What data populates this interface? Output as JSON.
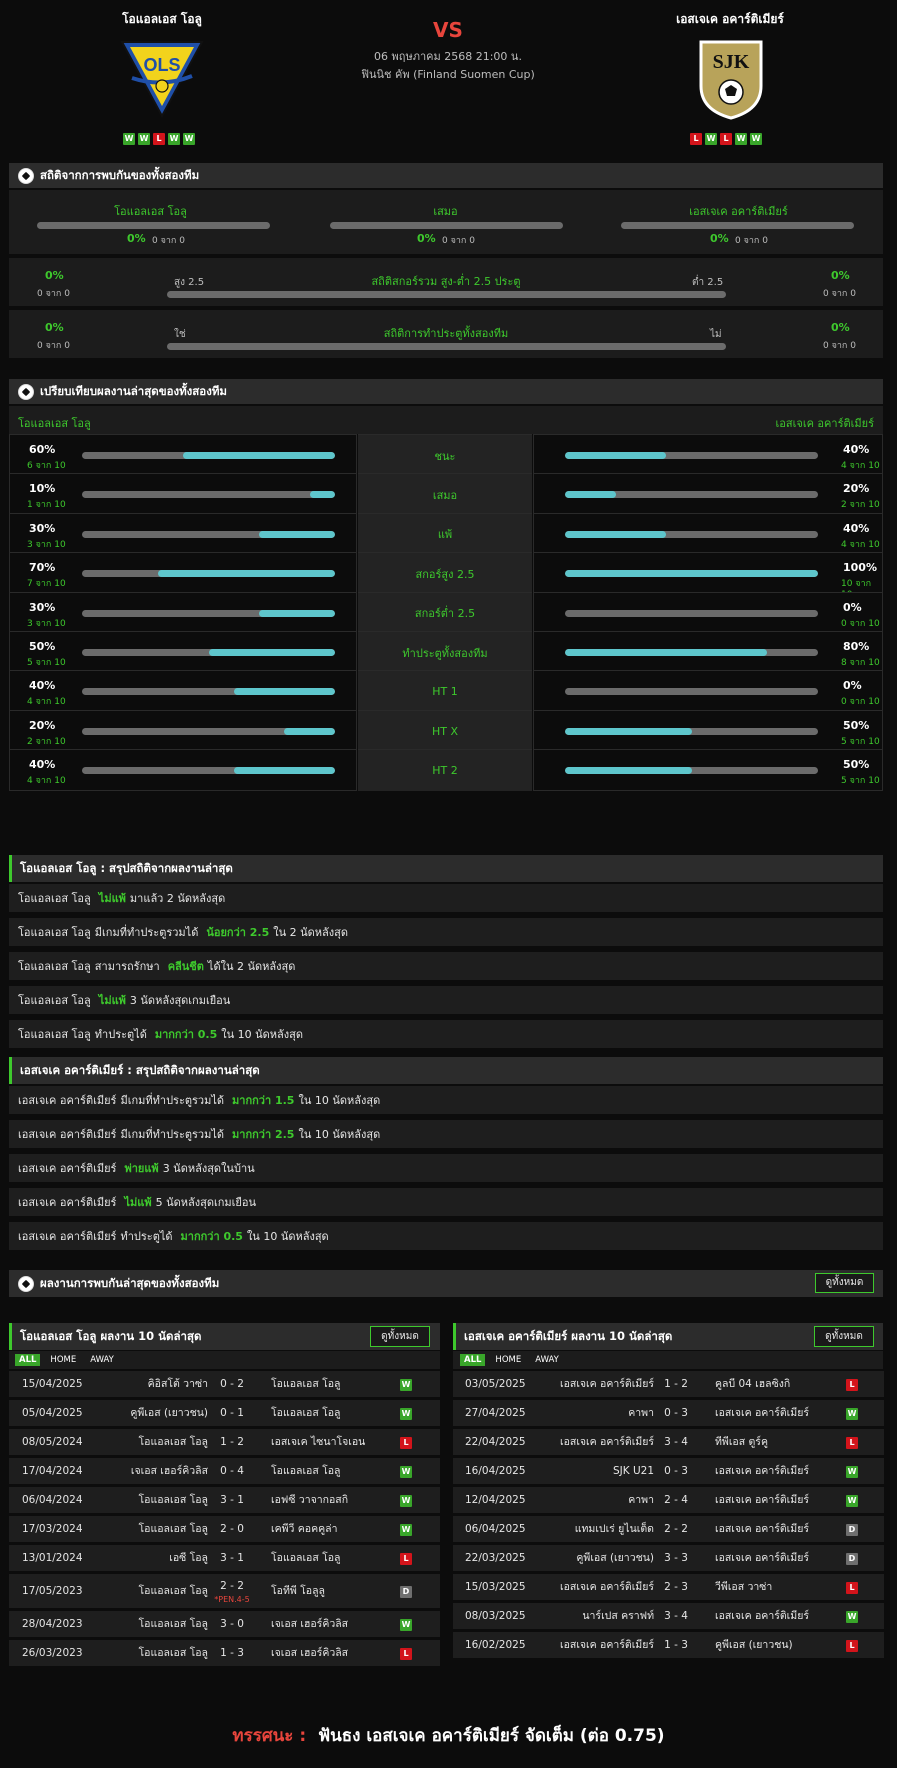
{
  "header": {
    "home_team": "โอแอลเอส โอลู",
    "away_team": "เอสเจเค อคาร์ติเมียร์",
    "vs": "VS",
    "datetime": "06 พฤษภาคม 2568 21:00 น.",
    "competition": "ฟินนิช คัพ (Finland Suomen Cup)",
    "home_logo_text": "OLS",
    "away_logo_text": "SJK",
    "home_form": [
      "W",
      "W",
      "L",
      "W",
      "W"
    ],
    "away_form": [
      "L",
      "W",
      "L",
      "W",
      "W"
    ]
  },
  "h2h": {
    "title": "สถิติจากการพบกันของทั้งสองทีม",
    "home": {
      "label": "โอแอลเอส โอลู",
      "pct": "0%",
      "sub": "0 จาก 0"
    },
    "draw": {
      "label": "เสมอ",
      "pct": "0%",
      "sub": "0 จาก 0"
    },
    "away": {
      "label": "เอสเจเค อคาร์ติเมียร์",
      "pct": "0%",
      "sub": "0 จาก 0"
    },
    "ou": {
      "title": "สถิติสกอร์รวม สูง-ต่ำ 2.5 ประตู",
      "left_label": "สูง 2.5",
      "right_label": "ต่ำ 2.5",
      "left_pct": "0%",
      "left_sub": "0 จาก 0",
      "right_pct": "0%",
      "right_sub": "0 จาก 0"
    },
    "btts": {
      "title": "สถิติการทำประตูทั้งสองทีม",
      "left_label": "ใช่",
      "right_label": "ไม่",
      "left_pct": "0%",
      "left_sub": "0 จาก 0",
      "right_pct": "0%",
      "right_sub": "0 จาก 0"
    }
  },
  "compare": {
    "title": "เปรียบเทียบผลงานล่าสุดของทั้งสองทีม",
    "home_label": "โอแอลเอส โอลู",
    "away_label": "เอสเจเค อคาร์ติเมียร์",
    "rows": [
      {
        "label": "ชนะ",
        "home_pct": "60%",
        "home_sub": "6 จาก 10",
        "home_value": 0.6,
        "away_pct": "40%",
        "away_sub": "4 จาก 10",
        "away_value": 0.4
      },
      {
        "label": "เสมอ",
        "home_pct": "10%",
        "home_sub": "1 จาก 10",
        "home_value": 0.1,
        "away_pct": "20%",
        "away_sub": "2 จาก 10",
        "away_value": 0.2
      },
      {
        "label": "แพ้",
        "home_pct": "30%",
        "home_sub": "3 จาก 10",
        "home_value": 0.3,
        "away_pct": "40%",
        "away_sub": "4 จาก 10",
        "away_value": 0.4
      },
      {
        "label": "สกอร์สูง 2.5",
        "home_pct": "70%",
        "home_sub": "7 จาก 10",
        "home_value": 0.7,
        "away_pct": "100%",
        "away_sub": "10 จาก 10",
        "away_value": 1.0
      },
      {
        "label": "สกอร์ต่ำ 2.5",
        "home_pct": "30%",
        "home_sub": "3 จาก 10",
        "home_value": 0.3,
        "away_pct": "0%",
        "away_sub": "0 จาก 10",
        "away_value": 0.0
      },
      {
        "label": "ทำประตูทั้งสองทีม",
        "home_pct": "50%",
        "home_sub": "5 จาก 10",
        "home_value": 0.5,
        "away_pct": "80%",
        "away_sub": "8 จาก 10",
        "away_value": 0.8
      },
      {
        "label": "HT 1",
        "home_pct": "40%",
        "home_sub": "4 จาก 10",
        "home_value": 0.4,
        "away_pct": "0%",
        "away_sub": "0 จาก 10",
        "away_value": 0.0
      },
      {
        "label": "HT X",
        "home_pct": "20%",
        "home_sub": "2 จาก 10",
        "home_value": 0.2,
        "away_pct": "50%",
        "away_sub": "5 จาก 10",
        "away_value": 0.5
      },
      {
        "label": "HT 2",
        "home_pct": "40%",
        "home_sub": "4 จาก 10",
        "home_value": 0.4,
        "away_pct": "50%",
        "away_sub": "5 จาก 10",
        "away_value": 0.5
      }
    ]
  },
  "home_summary": {
    "title": "โอแอลเอส โอลู : สรุปสถิติจากผลงานล่าสุด",
    "rows": [
      {
        "team": "โอแอลเอส โอลู",
        "pre": "",
        "hl": "ไม่แพ้",
        "post": "มาแล้ว 2 นัดหลังสุด"
      },
      {
        "team": "โอแอลเอส โอลู",
        "pre": "มีเกมที่ทำประตูรวมได้",
        "hl": "น้อยกว่า 2.5",
        "post": "ใน 2 นัดหลังสุด"
      },
      {
        "team": "โอแอลเอส โอลู",
        "pre": "สามารถรักษา",
        "hl": "คลีนชีต",
        "post": "ได้ใน 2 นัดหลังสุด"
      },
      {
        "team": "โอแอลเอส โอลู",
        "pre": "",
        "hl": "ไม่แพ้",
        "post": "3 นัดหลังสุดเกมเยือน"
      },
      {
        "team": "โอแอลเอส โอลู",
        "pre": "ทำประตูได้",
        "hl": "มากกว่า 0.5",
        "post": "ใน 10 นัดหลังสุด"
      }
    ]
  },
  "away_summary": {
    "title": "เอสเจเค อคาร์ติเมียร์ : สรุปสถิติจากผลงานล่าสุด",
    "rows": [
      {
        "team": "เอสเจเค อคาร์ติเมียร์",
        "pre": "มีเกมที่ทำประตูรวมได้",
        "hl": "มากกว่า 1.5",
        "post": "ใน 10 นัดหลังสุด"
      },
      {
        "team": "เอสเจเค อคาร์ติเมียร์",
        "pre": "มีเกมที่ทำประตูรวมได้",
        "hl": "มากกว่า 2.5",
        "post": "ใน 10 นัดหลังสุด"
      },
      {
        "team": "เอสเจเค อคาร์ติเมียร์",
        "pre": "",
        "hl": "พ่ายแพ้",
        "post": "3 นัดหลังสุดในบ้าน"
      },
      {
        "team": "เอสเจเค อคาร์ติเมียร์",
        "pre": "",
        "hl": "ไม่แพ้",
        "post": "5 นัดหลังสุดเกมเยือน"
      },
      {
        "team": "เอสเจเค อคาร์ติเมียร์",
        "pre": "ทำประตูได้",
        "hl": "มากกว่า 0.5",
        "post": "ใน 10 นัดหลังสุด"
      }
    ]
  },
  "h2h_recent": {
    "title": "ผลงานการพบกันล่าสุดของทั้งสองทีม",
    "view_all": "ดูทั้งหมด"
  },
  "tabs": [
    "ALL",
    "HOME",
    "AWAY"
  ],
  "home_recent": {
    "title": "โอแอลเอส โอลู ผลงาน 10 นัดล่าสุด",
    "view_all": "ดูทั้งหมด",
    "matches": [
      {
        "date": "15/04/2025",
        "home": "คิอิสโต้ วาซ่า",
        "score": "0 - 2",
        "away": "โอแอลเอส โอลู",
        "result": "W",
        "note": ""
      },
      {
        "date": "05/04/2025",
        "home": "คูพีเอส (เยาวชน)",
        "score": "0 - 1",
        "away": "โอแอลเอส โอลู",
        "result": "W",
        "note": ""
      },
      {
        "date": "08/05/2024",
        "home": "โอแอลเอส โอลู",
        "score": "1 - 2",
        "away": "เอสเจเค ไซนาโจเอน",
        "result": "L",
        "note": ""
      },
      {
        "date": "17/04/2024",
        "home": "เจเอส เฮอร์คิวลิส",
        "score": "0 - 4",
        "away": "โอแอลเอส โอลู",
        "result": "W",
        "note": ""
      },
      {
        "date": "06/04/2024",
        "home": "โอแอลเอส โอลู",
        "score": "3 - 1",
        "away": "เอฟซี วาจากอสกิ",
        "result": "W",
        "note": ""
      },
      {
        "date": "17/03/2024",
        "home": "โอแอลเอส โอลู",
        "score": "2 - 0",
        "away": "เคพีวี คอคคูล่า",
        "result": "W",
        "note": ""
      },
      {
        "date": "13/01/2024",
        "home": "เอซี โอลู",
        "score": "3 - 1",
        "away": "โอแอลเอส โอลู",
        "result": "L",
        "note": ""
      },
      {
        "date": "17/05/2023",
        "home": "โอแอลเอส โอลู",
        "score": "2 - 2",
        "away": "โอทีพี โอลูลู",
        "result": "D",
        "note": "*PEN.4-5"
      },
      {
        "date": "28/04/2023",
        "home": "โอแอลเอส โอลู",
        "score": "3 - 0",
        "away": "เจเอส เฮอร์คิวลิส",
        "result": "W",
        "note": ""
      },
      {
        "date": "26/03/2023",
        "home": "โอแอลเอส โอลู",
        "score": "1 - 3",
        "away": "เจเอส เฮอร์คิวลิส",
        "result": "L",
        "note": ""
      }
    ]
  },
  "away_recent": {
    "title": "เอสเจเค อคาร์ติเมียร์ ผลงาน 10 นัดล่าสุด",
    "view_all": "ดูทั้งหมด",
    "matches": [
      {
        "date": "03/05/2025",
        "home": "เอสเจเค อคาร์ติเมียร์",
        "score": "1 - 2",
        "away": "คูลบี 04 เฮลซิงกิ",
        "result": "L"
      },
      {
        "date": "27/04/2025",
        "home": "คาพา",
        "score": "0 - 3",
        "away": "เอสเจเค อคาร์ติเมียร์",
        "result": "W"
      },
      {
        "date": "22/04/2025",
        "home": "เอสเจเค อคาร์ติเมียร์",
        "score": "3 - 4",
        "away": "ทีพีเอส ตูร์คู",
        "result": "L"
      },
      {
        "date": "16/04/2025",
        "home": "SJK U21",
        "score": "0 - 3",
        "away": "เอสเจเค อคาร์ติเมียร์",
        "result": "W"
      },
      {
        "date": "12/04/2025",
        "home": "คาพา",
        "score": "2 - 4",
        "away": "เอสเจเค อคาร์ติเมียร์",
        "result": "W"
      },
      {
        "date": "06/04/2025",
        "home": "แทมเปเร่ ยูไนเต็ด",
        "score": "2 - 2",
        "away": "เอสเจเค อคาร์ติเมียร์",
        "result": "D"
      },
      {
        "date": "22/03/2025",
        "home": "คูพีเอส (เยาวชน)",
        "score": "3 - 3",
        "away": "เอสเจเค อคาร์ติเมียร์",
        "result": "D"
      },
      {
        "date": "15/03/2025",
        "home": "เอสเจเค อคาร์ติเมียร์",
        "score": "2 - 3",
        "away": "วีพีเอส วาซ่า",
        "result": "L"
      },
      {
        "date": "08/03/2025",
        "home": "นาร์เปส คราฟท์",
        "score": "3 - 4",
        "away": "เอสเจเค อคาร์ติเมียร์",
        "result": "W"
      },
      {
        "date": "16/02/2025",
        "home": "เอสเจเค อคาร์ติเมียร์",
        "score": "1 - 3",
        "away": "คูพีเอส (เยาวชน)",
        "result": "L"
      }
    ]
  },
  "verdict": {
    "label": "ทรรศนะ :",
    "text": "ฟันธง เอสเจเค อคาร์ติเมียร์ จัดเต็ม (ต่อ 0.75)"
  },
  "colors": {
    "accent": "#3ec92d",
    "bar_fill": "#5ec6cc",
    "bar_track": "#6b6b6b",
    "win": "#39a62a",
    "loss": "#d3141b",
    "draw": "#6f6f6f",
    "vs": "#e8453c",
    "verdict_label": "#e8453c"
  }
}
